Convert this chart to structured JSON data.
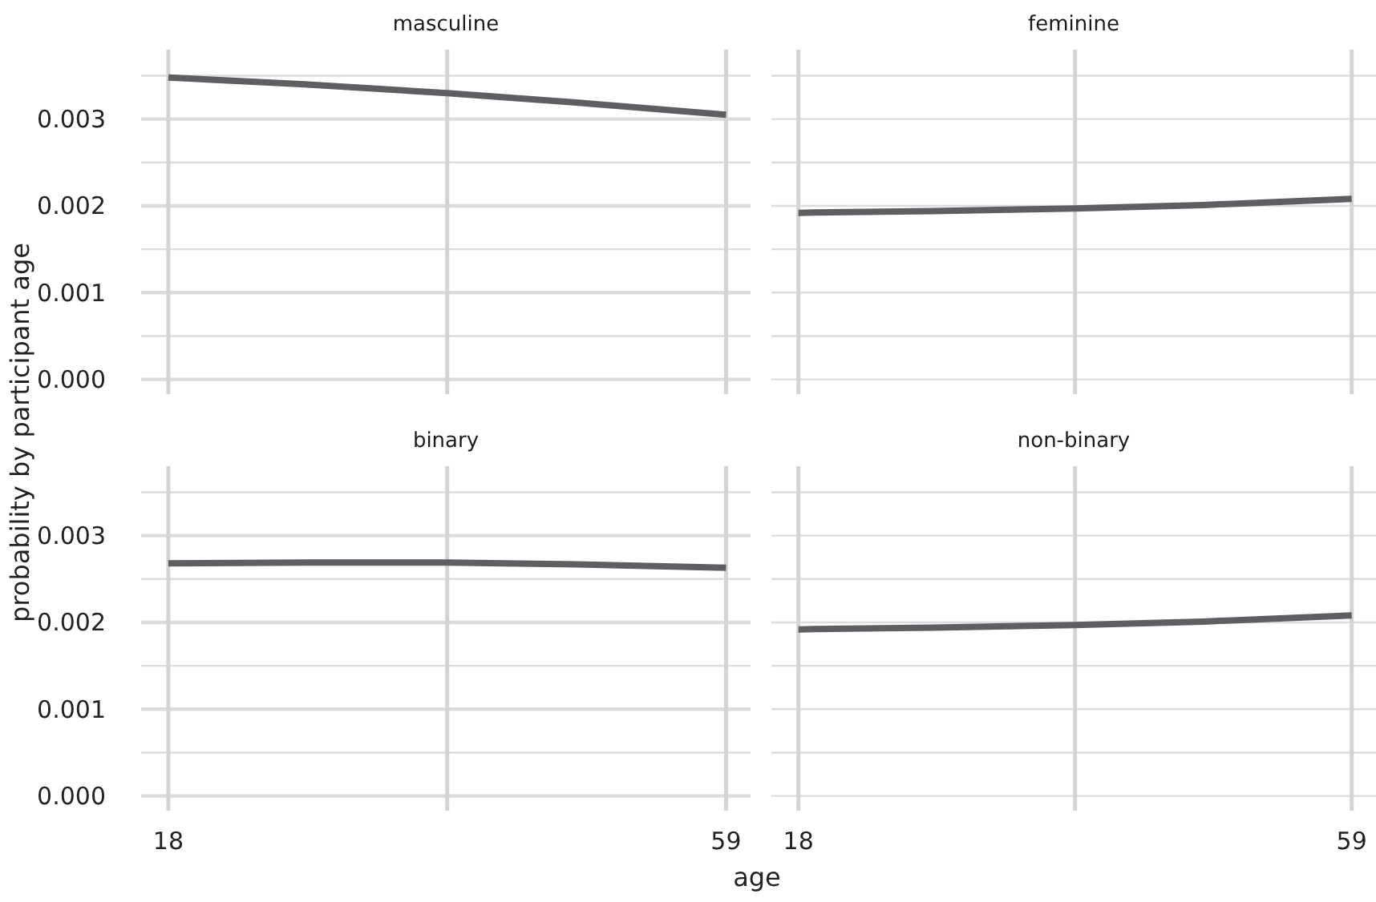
{
  "chart_data": [
    {
      "type": "line",
      "title": "masculine",
      "x": [
        18,
        28,
        38.5,
        48,
        59
      ],
      "series": [
        {
          "color": "#5e5e63",
          "values": [
            0.00348,
            0.0034,
            0.0033,
            0.00319,
            0.00305
          ]
        }
      ],
      "xlim": [
        16,
        60.8
      ],
      "ylim": [
        -0.00017,
        0.0038
      ],
      "xticks": [
        {
          "value": 18,
          "label": null
        },
        {
          "value": 38.5,
          "label": null
        },
        {
          "value": 59,
          "label": null
        }
      ],
      "yticks": [
        {
          "value": 0,
          "label": "0.000"
        },
        {
          "value": 0.0005,
          "label": null
        },
        {
          "value": 0.001,
          "label": "0.001"
        },
        {
          "value": 0.0015,
          "label": null
        },
        {
          "value": 0.002,
          "label": "0.002"
        },
        {
          "value": 0.0025,
          "label": null
        },
        {
          "value": 0.003,
          "label": "0.003"
        },
        {
          "value": 0.0035,
          "label": null
        }
      ],
      "grid": true,
      "tick_labels": "y"
    },
    {
      "type": "line",
      "title": "feminine",
      "x": [
        18,
        28,
        38.5,
        48,
        59
      ],
      "series": [
        {
          "color": "#5e5e63",
          "values": [
            0.00192,
            0.00194,
            0.00197,
            0.00201,
            0.00208
          ]
        }
      ],
      "xlim": [
        16,
        60.8
      ],
      "ylim": [
        -0.00017,
        0.0038
      ],
      "xticks": [
        {
          "value": 18,
          "label": null
        },
        {
          "value": 38.5,
          "label": null
        },
        {
          "value": 59,
          "label": null
        }
      ],
      "yticks": [
        {
          "value": 0,
          "label": null
        },
        {
          "value": 0.0005,
          "label": null
        },
        {
          "value": 0.001,
          "label": null
        },
        {
          "value": 0.0015,
          "label": null
        },
        {
          "value": 0.002,
          "label": null
        },
        {
          "value": 0.0025,
          "label": null
        },
        {
          "value": 0.003,
          "label": null
        },
        {
          "value": 0.0035,
          "label": null
        }
      ],
      "grid": true,
      "tick_labels": false
    },
    {
      "type": "line",
      "title": "binary",
      "ylabel": "probability by participant age",
      "x": [
        18,
        28,
        38.5,
        48,
        59
      ],
      "series": [
        {
          "color": "#5e5e63",
          "values": [
            0.00268,
            0.00269,
            0.00269,
            0.00267,
            0.00263
          ]
        }
      ],
      "xlim": [
        16,
        60.8
      ],
      "ylim": [
        -0.00017,
        0.0038
      ],
      "xticks": [
        {
          "value": 18,
          "label": "18"
        },
        {
          "value": 38.5,
          "label": null
        },
        {
          "value": 59,
          "label": "59"
        }
      ],
      "yticks": [
        {
          "value": 0,
          "label": "0.000"
        },
        {
          "value": 0.0005,
          "label": null
        },
        {
          "value": 0.001,
          "label": "0.001"
        },
        {
          "value": 0.0015,
          "label": null
        },
        {
          "value": 0.002,
          "label": "0.002"
        },
        {
          "value": 0.0025,
          "label": null
        },
        {
          "value": 0.003,
          "label": "0.003"
        },
        {
          "value": 0.0035,
          "label": null
        }
      ],
      "grid": true
    },
    {
      "type": "line",
      "title": "non-binary",
      "xlabel": "age",
      "x": [
        18,
        28,
        38.5,
        48,
        59
      ],
      "series": [
        {
          "color": "#5e5e63",
          "values": [
            0.00192,
            0.00194,
            0.00197,
            0.00201,
            0.00208
          ]
        }
      ],
      "xlim": [
        16,
        60.8
      ],
      "ylim": [
        -0.00017,
        0.0038
      ],
      "xticks": [
        {
          "value": 18,
          "label": "18"
        },
        {
          "value": 38.5,
          "label": null
        },
        {
          "value": 59,
          "label": "59"
        }
      ],
      "yticks": [
        {
          "value": 0,
          "label": null
        },
        {
          "value": 0.0005,
          "label": null
        },
        {
          "value": 0.001,
          "label": null
        },
        {
          "value": 0.0015,
          "label": null
        },
        {
          "value": 0.002,
          "label": null
        },
        {
          "value": 0.0025,
          "label": null
        },
        {
          "value": 0.003,
          "label": null
        },
        {
          "value": 0.0035,
          "label": null
        }
      ],
      "grid": true,
      "tick_labels": "x"
    }
  ]
}
